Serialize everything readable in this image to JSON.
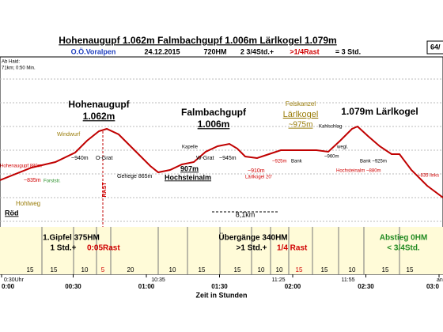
{
  "header": {
    "title": "Hohenaugupf 1.062m  Falmbachgupf 1.006m  Lärlkogel 1.079m",
    "region": "O.Ö.Voralpen",
    "date": "24.12.2015",
    "ascent": "720HM",
    "walk": "2 3/4Std.+",
    "rest": ">1/4Rast",
    "total": "= 3 Std.",
    "page": "64/"
  },
  "start_note": [
    "Ab Haid:",
    "71km; 0:50 Min."
  ],
  "peaks": [
    {
      "name": "Hohenaugupf",
      "height": "1.062m"
    },
    {
      "name": "Falmbachgupf",
      "height": "1.006m"
    },
    {
      "name": "Felskanzel",
      "sub": "Lärlkogel",
      "height": "~975m"
    },
    {
      "name": "1.079m  Lärlkogel"
    }
  ],
  "places": [
    "Hohenaugupf 880m",
    "~835m",
    "Forststr.",
    "Hohlweg",
    "Röd",
    "Windwurf",
    "~940m",
    "O-Grat",
    "RAST",
    "Gehege  865m",
    "Kapelle",
    "907m",
    "Hochsteinalm",
    "W-Grat",
    "~945m",
    "~910m",
    "Lärlkogel 20'",
    "~925m",
    "Bank",
    "Kahlschlag",
    "wegl.",
    "~960m",
    "Bank ~925m",
    "Hochsteinalm ~880m",
    "~835 links"
  ],
  "distance": "8,1km",
  "sections": [
    {
      "title": "1.Gipfel  375HM",
      "time": "1 Std.+",
      "rest": "0:05Rast"
    },
    {
      "title": "Übergänge 340HM",
      "time": ">1 Std.+",
      "rest": "1/4 Rast"
    },
    {
      "title": "Abstieg 0HM",
      "time": "< 3/4Std."
    }
  ],
  "segments": [
    "15",
    "15",
    "10",
    "5",
    "20",
    "10",
    "15",
    "15",
    "10",
    "10",
    "15",
    "15",
    "10",
    "15",
    "15"
  ],
  "clock": [
    "0:30Uhr",
    "10:35",
    "11:25",
    "11:55",
    "an"
  ],
  "time_axis": {
    "ticks": [
      "0:00",
      "00:30",
      "01:00",
      "01:30",
      "02:00",
      "02:30",
      "03:0"
    ],
    "label": "Zeit in Stunden"
  }
}
